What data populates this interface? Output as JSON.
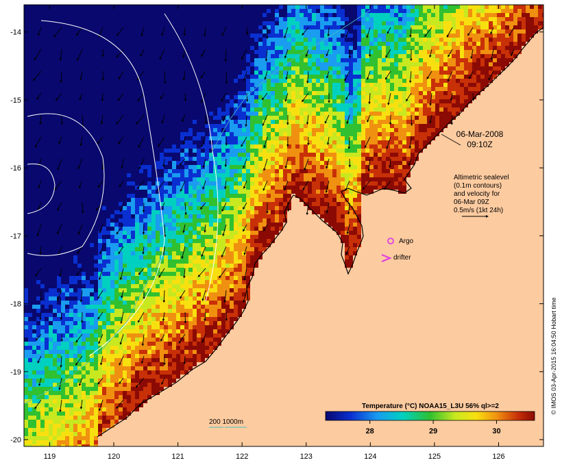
{
  "map": {
    "lon_ticks": [
      "119",
      "120",
      "121",
      "122",
      "123",
      "124",
      "125",
      "126"
    ],
    "lat_ticks": [
      "-14",
      "-15",
      "-16",
      "-17",
      "-18",
      "-19",
      "-20"
    ],
    "lon_range": [
      118.6,
      126.7
    ],
    "lat_range": [
      -20.1,
      -13.6
    ]
  },
  "annotations": {
    "date": "06-Mar-2008",
    "time": "09:10Z",
    "altimetry_lines": [
      "Altimetric sealevel",
      "(0.1m contours)",
      "and velocity for",
      "06-Mar 09Z",
      "0.5m/s (1kt 24h)"
    ],
    "argo_label": "Argo",
    "drifter_label": "drifter",
    "depth_label": "200  1000m"
  },
  "colorbar": {
    "title": "Temperature (°C) NOAA15_L3U 56% ql>=2",
    "ticks": [
      "28",
      "29",
      "30"
    ],
    "tick_values": [
      28,
      29,
      30
    ],
    "range": [
      27.3,
      30.6
    ]
  },
  "credit": "© IMOS 03-Apr-2015 16:04:50 Hobart time",
  "colors": {
    "land": "#fdcba0",
    "argo": "#e040e0",
    "depth_contour": "#40c0c0"
  }
}
